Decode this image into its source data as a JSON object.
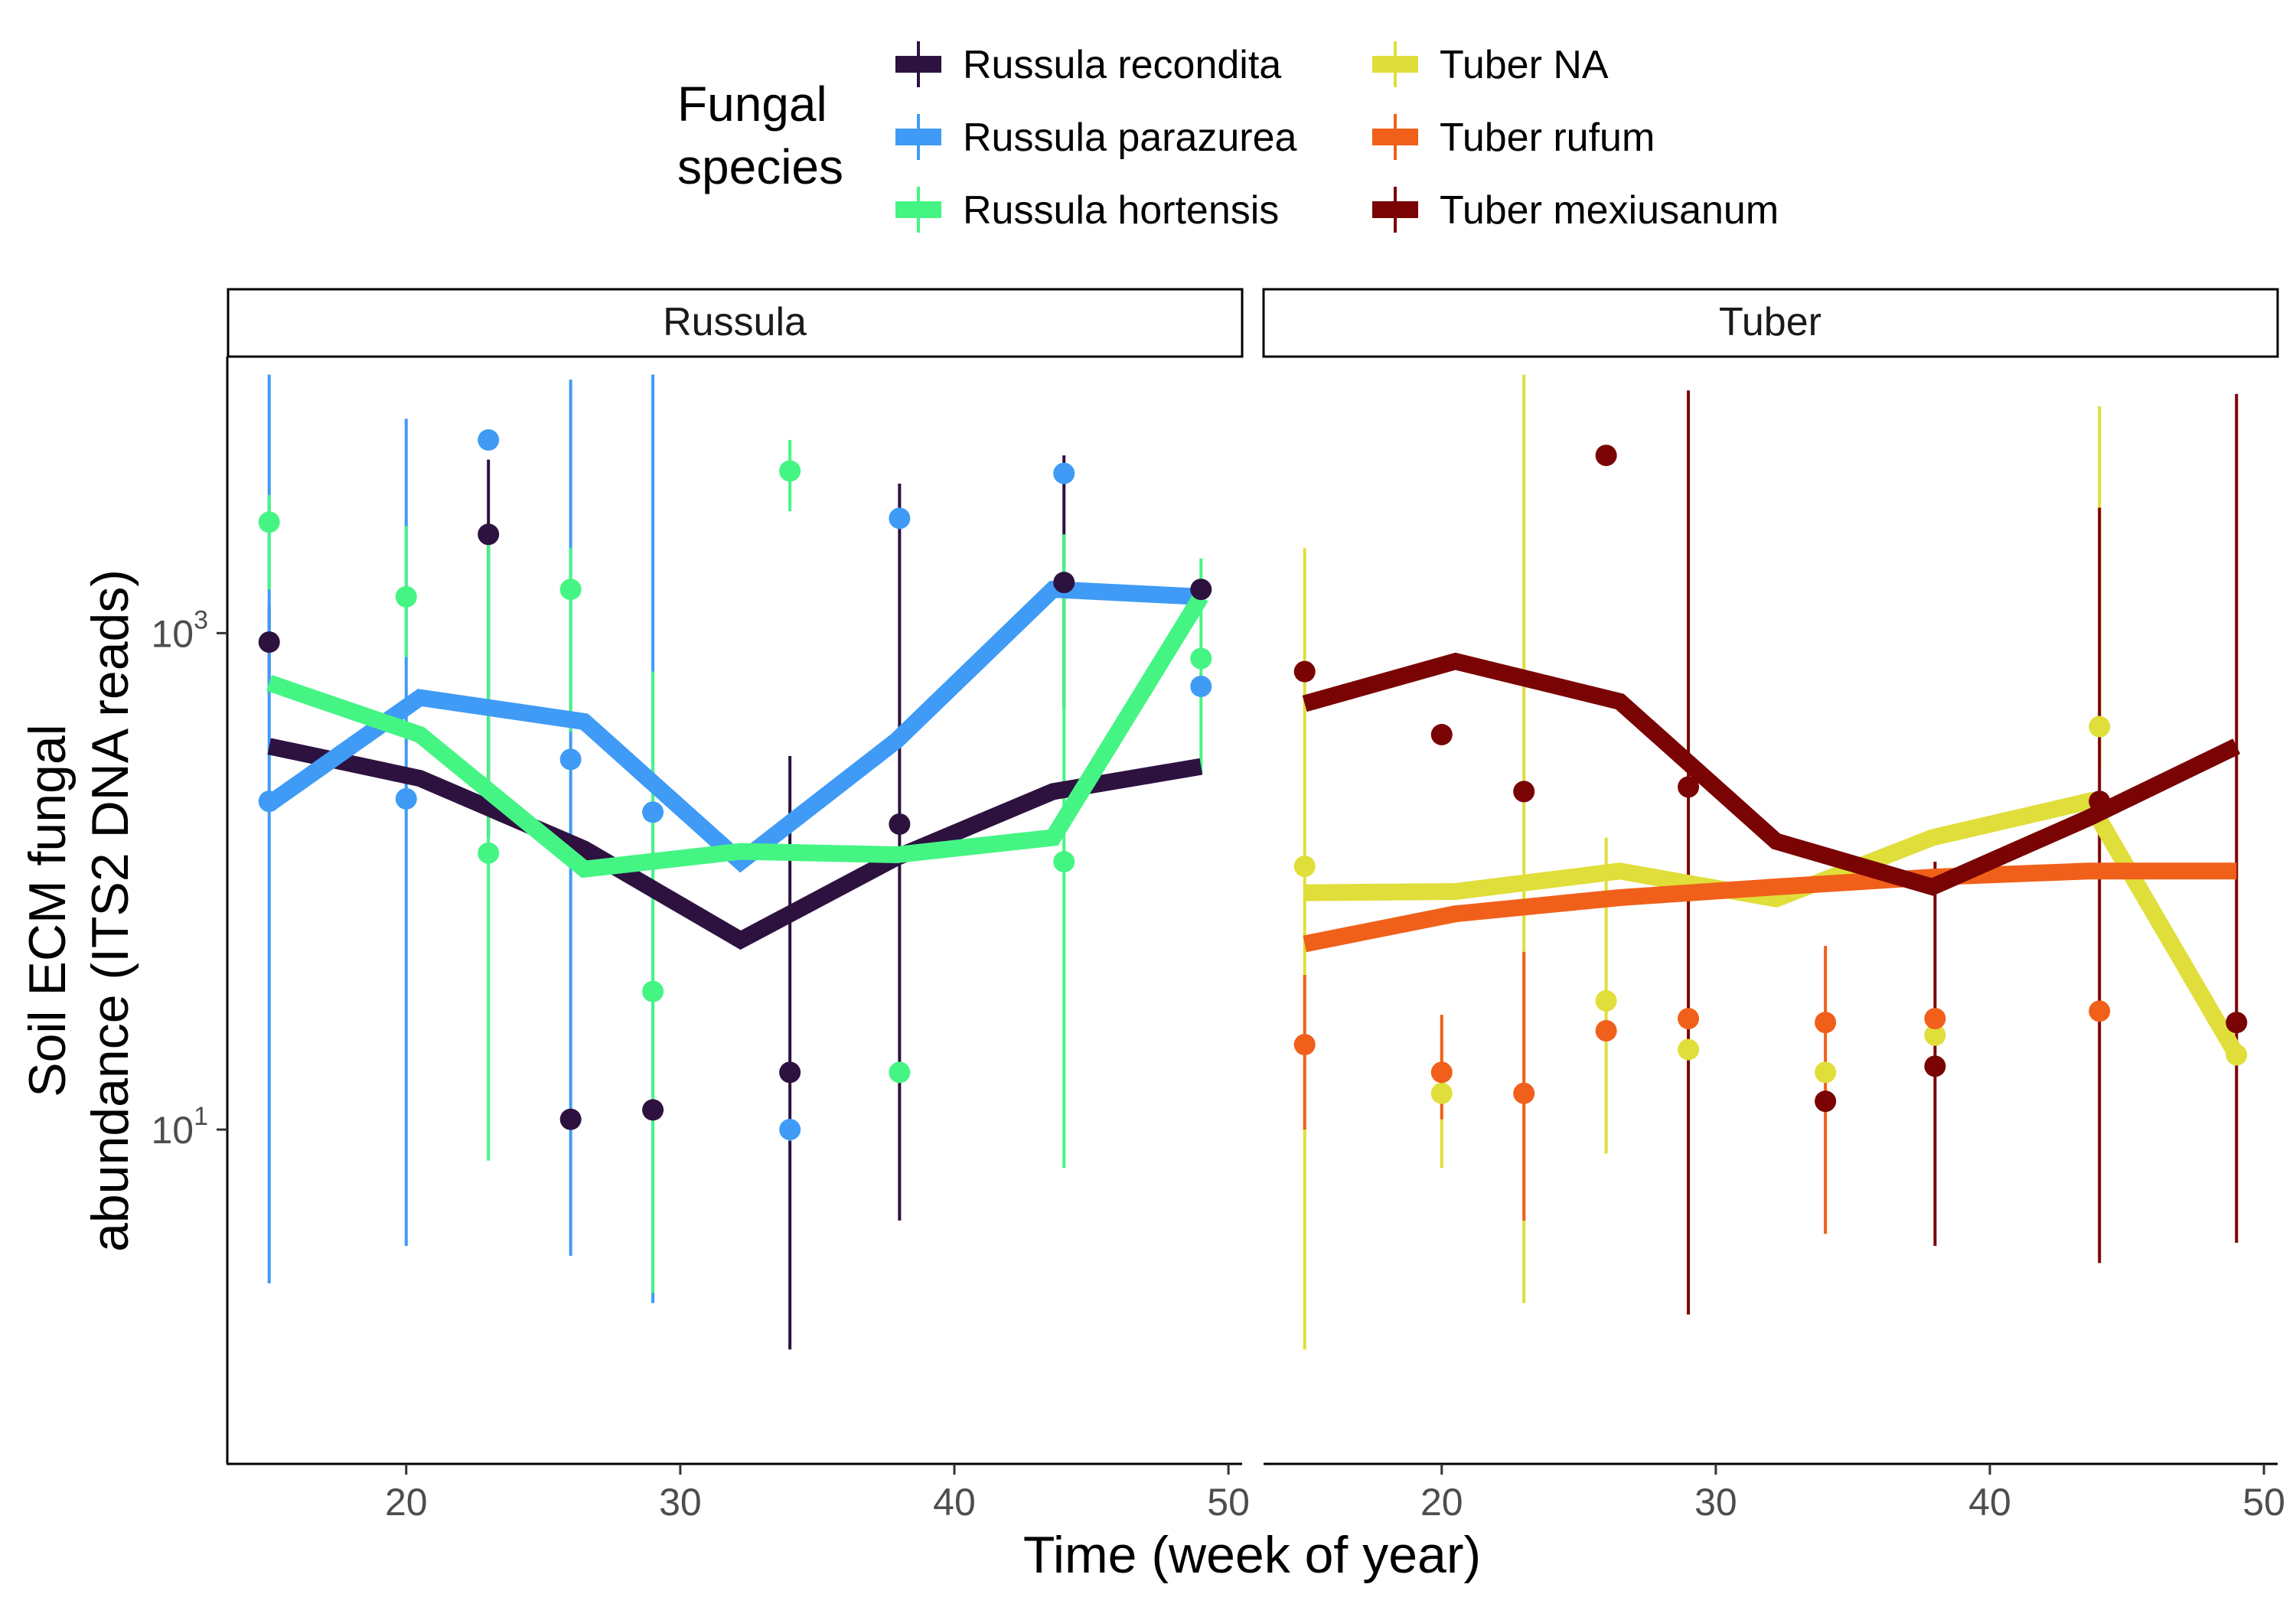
{
  "legend": {
    "title_line1": "Fungal",
    "title_line2": "species",
    "items": [
      {
        "label": "Russula recondita",
        "color": "#2d1240"
      },
      {
        "label": "Russula parazurea",
        "color": "#3f9bf5"
      },
      {
        "label": "Russula hortensis",
        "color": "#45f584"
      },
      {
        "label": "Tuber NA",
        "color": "#e0de3a"
      },
      {
        "label": "Tuber rufum",
        "color": "#f0601a"
      },
      {
        "label": "Tuber mexiusanum",
        "color": "#7a0404"
      }
    ]
  },
  "xlabel": "Time (week of year)",
  "ylabel_line1": "Soil ECM fungal",
  "ylabel_line2": "abundance (ITS2 DNA reads)",
  "chart_data": {
    "type": "line",
    "log_y": true,
    "ylim": [
      0.45,
      13000
    ],
    "xlim": [
      13.5,
      50.5
    ],
    "x_ticks": [
      20,
      30,
      40,
      50
    ],
    "y_ticks": [
      {
        "value": 10,
        "base": "10",
        "exp": "1"
      },
      {
        "value": 1000,
        "base": "10",
        "exp": "3"
      }
    ],
    "panels": [
      {
        "title": "Russula",
        "series": [
          {
            "name": "Russula recondita",
            "color": "#2d1240",
            "line": [
              [
                15,
                350
              ],
              [
                20.5,
                260
              ],
              [
                26.5,
                135
              ],
              [
                32.2,
                58
              ],
              [
                37.9,
                125
              ],
              [
                43.6,
                230
              ],
              [
                49,
                290
              ]
            ],
            "points": [
              [
                15,
                920,
                640,
                1300
              ],
              [
                23,
                2500,
                5000,
                150
              ],
              [
                26,
                11,
                null,
                null
              ],
              [
                29,
                12,
                null,
                null
              ],
              [
                34,
                17,
                320,
                1.3
              ],
              [
                38,
                170,
                4000,
                4.3
              ],
              [
                44,
                1600,
                5200,
                500
              ],
              [
                49,
                1500,
                null,
                null
              ]
            ]
          },
          {
            "name": "Russula parazurea",
            "color": "#3f9bf5",
            "line": [
              [
                15,
                205
              ],
              [
                20.5,
                550
              ],
              [
                26.5,
                440
              ],
              [
                32.2,
                120
              ],
              [
                37.9,
                370
              ],
              [
                43.6,
                1500
              ],
              [
                49,
                1400
              ]
            ],
            "points": [
              [
                15,
                210,
                11000,
                2.4
              ],
              [
                20,
                215,
                7300,
                3.4
              ],
              [
                23,
                6000,
                null,
                null
              ],
              [
                26,
                310,
                10500,
                3.1
              ],
              [
                29,
                190,
                11000,
                2.0
              ],
              [
                34,
                10,
                9,
                11
              ],
              [
                38,
                2900,
                null,
                null
              ],
              [
                44,
                4400,
                null,
                null
              ],
              [
                49,
                610,
                null,
                null
              ]
            ]
          },
          {
            "name": "Russula hortensis",
            "color": "#45f584",
            "line": [
              [
                15,
                630
              ],
              [
                20.5,
                390
              ],
              [
                26.5,
                112
              ],
              [
                32.2,
                132
              ],
              [
                37.9,
                128
              ],
              [
                43.6,
                150
              ],
              [
                49,
                1400
              ]
            ],
            "points": [
              [
                15,
                2800,
                3600,
                1500
              ],
              [
                20,
                1400,
                2700,
                800
              ],
              [
                23,
                130,
                2500,
                7.5
              ],
              [
                26,
                1500,
                2200,
                400
              ],
              [
                29,
                36,
                700,
                2.2
              ],
              [
                34,
                4500,
                6000,
                3100
              ],
              [
                38,
                17,
                null,
                null
              ],
              [
                44,
                120,
                2500,
                7
              ],
              [
                49,
                790,
                2000,
                270
              ]
            ]
          }
        ]
      },
      {
        "title": "Tuber",
        "series": [
          {
            "name": "Tuber NA",
            "color": "#e0de3a",
            "line": [
              [
                15,
                90
              ],
              [
                20.5,
                91
              ],
              [
                26.5,
                110
              ],
              [
                32.2,
                85
              ],
              [
                37.9,
                150
              ],
              [
                43.6,
                210
              ],
              [
                49,
                20
              ]
            ],
            "points": [
              [
                15,
                115,
                2200,
                1.3
              ],
              [
                20,
                14,
                24,
                7
              ],
              [
                23,
                230,
                11000,
                2.0
              ],
              [
                26,
                33,
                150,
                8
              ],
              [
                29,
                21,
                null,
                null
              ],
              [
                34,
                17,
                null,
                null
              ],
              [
                38,
                24,
                null,
                null
              ],
              [
                44,
                420,
                8200,
                280
              ],
              [
                49,
                20,
                null,
                null
              ]
            ]
          },
          {
            "name": "Tuber rufum",
            "color": "#f0601a",
            "line": [
              [
                15,
                56
              ],
              [
                20.5,
                74
              ],
              [
                26.5,
                86
              ],
              [
                32.2,
                95
              ],
              [
                37.9,
                104
              ],
              [
                43.6,
                110
              ],
              [
                49,
                110
              ]
            ],
            "points": [
              [
                15,
                22,
                42,
                10
              ],
              [
                20,
                17,
                29,
                11
              ],
              [
                23,
                14,
                52,
                4.3
              ],
              [
                26,
                25,
                null,
                null
              ],
              [
                29,
                28,
                null,
                null
              ],
              [
                34,
                27,
                55,
                3.8
              ],
              [
                38,
                28,
                null,
                null
              ],
              [
                44,
                30,
                null,
                null
              ],
              [
                49,
                27,
                null,
                null
              ]
            ]
          },
          {
            "name": "Tuber mexiusanum",
            "color": "#7a0404",
            "line": [
              [
                15,
                520
              ],
              [
                20.5,
                770
              ],
              [
                26.5,
                530
              ],
              [
                32.2,
                145
              ],
              [
                37.9,
                95
              ],
              [
                43.6,
                180
              ],
              [
                49,
                350
              ]
            ],
            "points": [
              [
                15,
                700,
                null,
                null
              ],
              [
                20,
                390,
                null,
                null
              ],
              [
                23,
                230,
                null,
                null
              ],
              [
                26,
                5200,
                null,
                null
              ],
              [
                29,
                240,
                9500,
                1.8
              ],
              [
                34,
                13,
                null,
                null
              ],
              [
                38,
                18,
                120,
                3.4
              ],
              [
                44,
                210,
                3200,
                2.9
              ],
              [
                49,
                27,
                9200,
                3.5
              ]
            ]
          }
        ]
      }
    ]
  }
}
